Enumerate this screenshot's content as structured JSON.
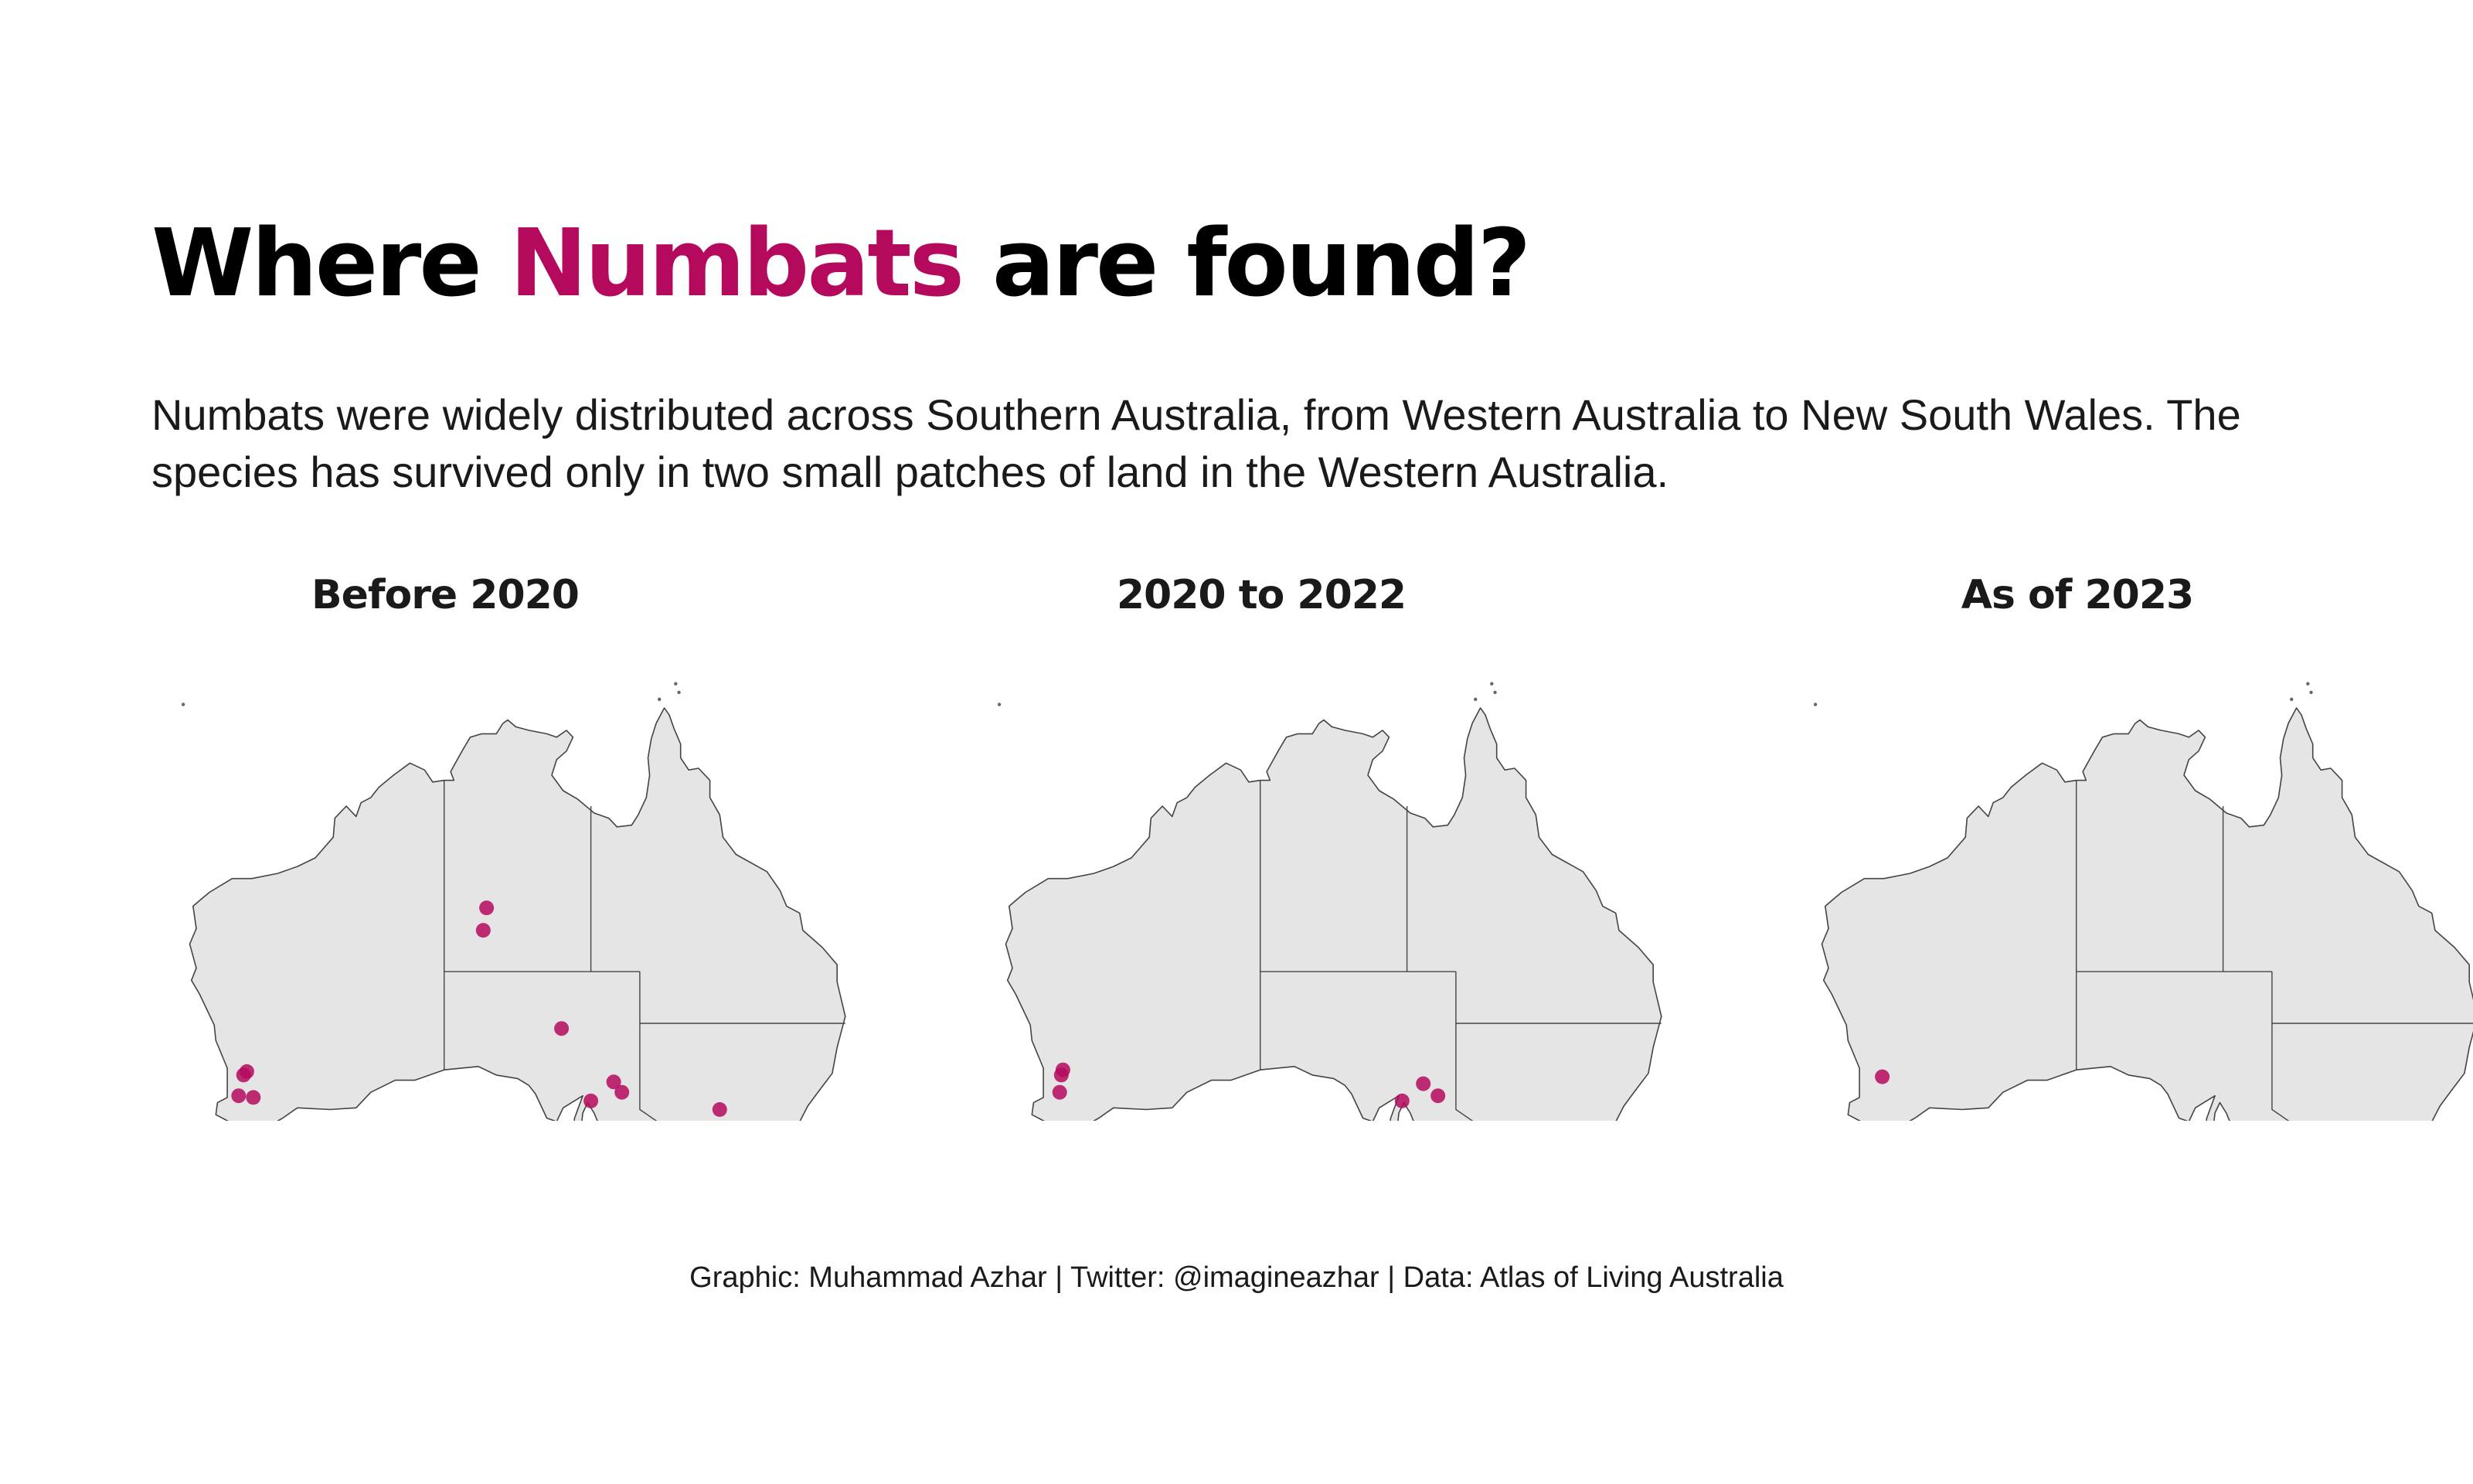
{
  "title": {
    "prefix": "Where",
    "highlight": "Numbats",
    "suffix": "are found?"
  },
  "subtitle": "Numbats were widely distributed across Southern Australia, from Western Australia to New South Wales. The species has survived only in two small patches of land in the Western Australia.",
  "colors": {
    "accent": "#b5095e",
    "land": "#e5e5e5",
    "border": "#444444",
    "title_text": "#000000"
  },
  "panels": [
    {
      "title": "Before 2020",
      "sightings": [
        {
          "lon": 116.9,
          "lat": -31.8
        },
        {
          "lon": 116.7,
          "lat": -32.0
        },
        {
          "lon": 116.4,
          "lat": -33.2
        },
        {
          "lon": 117.3,
          "lat": -33.3
        },
        {
          "lon": 131.6,
          "lat": -22.3
        },
        {
          "lon": 131.4,
          "lat": -23.6
        },
        {
          "lon": 136.2,
          "lat": -29.3
        },
        {
          "lon": 138.0,
          "lat": -33.5
        },
        {
          "lon": 139.4,
          "lat": -32.4
        },
        {
          "lon": 139.9,
          "lat": -33.0
        },
        {
          "lon": 145.9,
          "lat": -34.0
        }
      ]
    },
    {
      "title": "2020 to 2022",
      "sightings": [
        {
          "lon": 116.9,
          "lat": -31.7
        },
        {
          "lon": 116.8,
          "lat": -32.0
        },
        {
          "lon": 116.7,
          "lat": -33.0
        },
        {
          "lon": 137.7,
          "lat": -33.5
        },
        {
          "lon": 139.0,
          "lat": -32.5
        },
        {
          "lon": 139.9,
          "lat": -33.2
        }
      ]
    },
    {
      "title": "As of 2023",
      "sightings": [
        {
          "lon": 117.1,
          "lat": -32.1
        }
      ]
    }
  ],
  "caption": "Graphic: Muhammad Azhar | Twitter: @imagineazhar | Data: Atlas of Living Australia"
}
